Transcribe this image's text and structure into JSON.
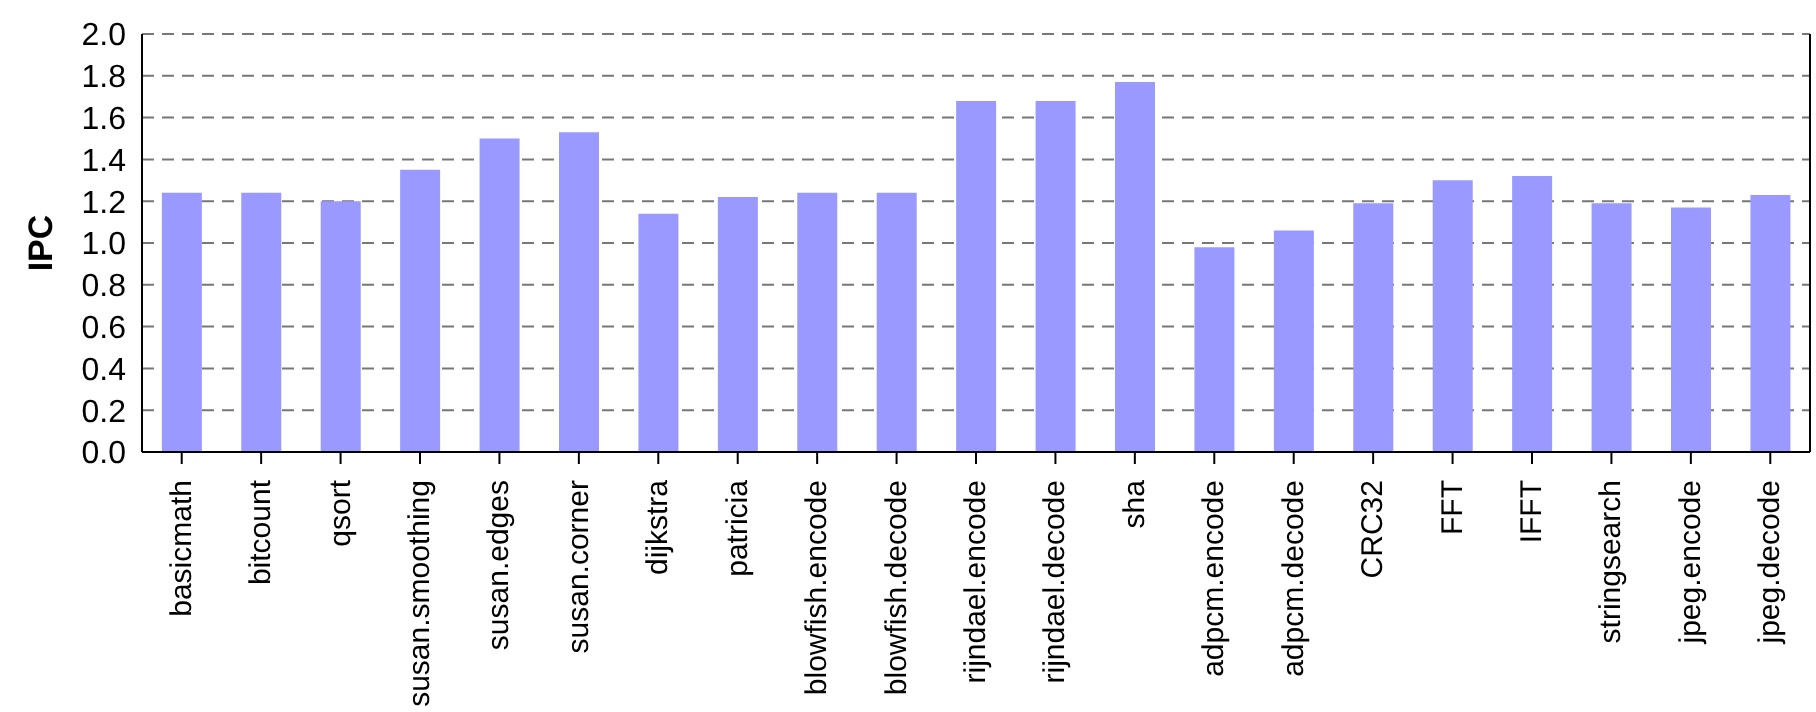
{
  "chart_data": {
    "type": "bar",
    "ylabel": "IPC",
    "categories": [
      "basicmath",
      "bitcount",
      "qsort",
      "susan.smoothing",
      "susan.edges",
      "susan.corner",
      "dijkstra",
      "patricia",
      "blowfish.encode",
      "blowfish.decode",
      "rijndael.encode",
      "rijndael.decode",
      "sha",
      "adpcm.encode",
      "adpcm.decode",
      "CRC32",
      "FFT",
      "IFFT",
      "stringsearch",
      "jpeg.encode",
      "jpeg.decode"
    ],
    "values": [
      1.24,
      1.24,
      1.2,
      1.35,
      1.5,
      1.53,
      1.14,
      1.22,
      1.24,
      1.24,
      1.68,
      1.68,
      1.77,
      0.98,
      1.06,
      1.19,
      1.3,
      1.32,
      1.19,
      1.17,
      1.23
    ],
    "color": "#9999ff",
    "ylim": [
      0,
      2
    ],
    "yticks": [
      {
        "value": 0,
        "label": "0.0"
      },
      0.2,
      0.4,
      0.6,
      0.8,
      {
        "value": 1,
        "label": "1.0"
      },
      1.2,
      1.4,
      1.6,
      1.8,
      {
        "value": 2,
        "label": "2.0"
      }
    ],
    "grid": "y"
  }
}
